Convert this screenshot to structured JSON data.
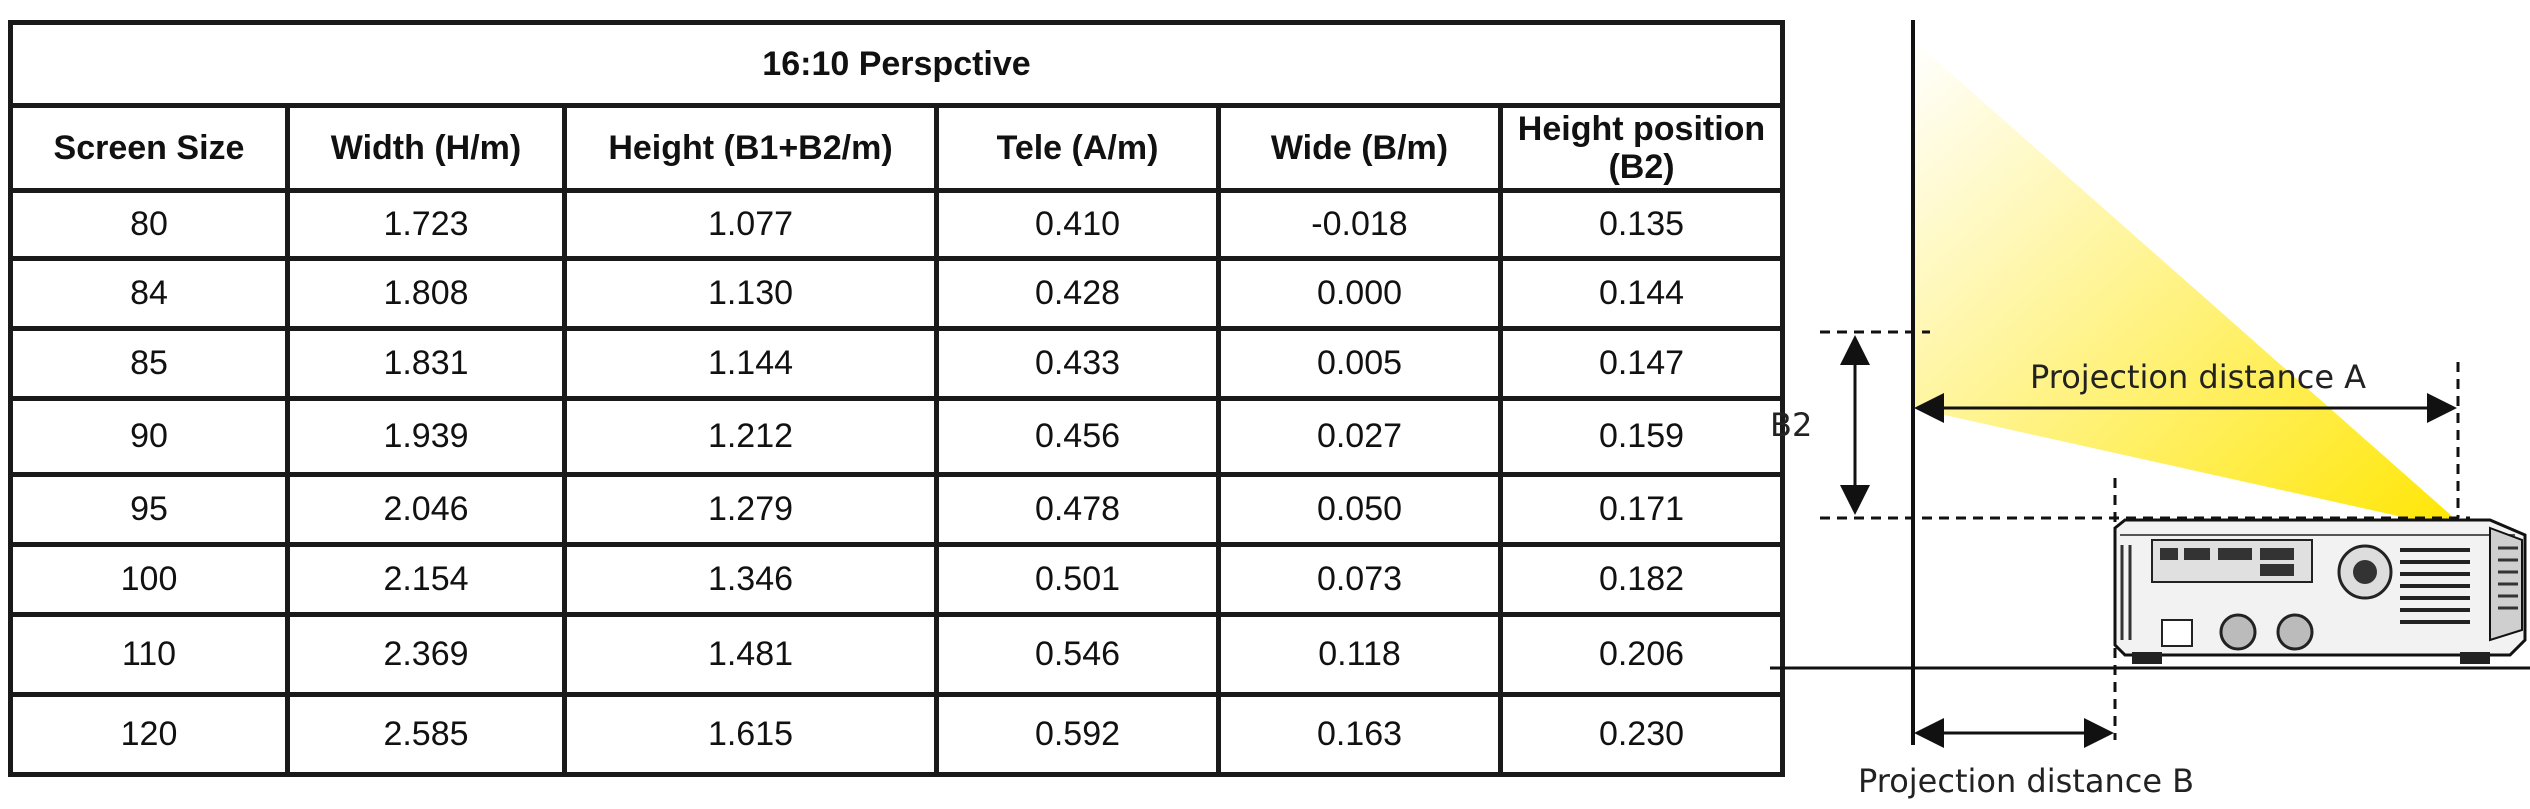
{
  "table": {
    "title": "16:10 Perspctive",
    "headers": [
      "Screen Size",
      "Width (H/m)",
      "Height (B1+B2/m)",
      "Tele (A/m)",
      "Wide (B/m)",
      "Height position (B2)"
    ],
    "rows": [
      [
        "80",
        "1.723",
        "1.077",
        "0.410",
        "-0.018",
        "0.135"
      ],
      [
        "84",
        "1.808",
        "1.130",
        "0.428",
        "0.000",
        "0.144"
      ],
      [
        "85",
        "1.831",
        "1.144",
        "0.433",
        "0.005",
        "0.147"
      ],
      [
        "90",
        "1.939",
        "1.212",
        "0.456",
        "0.027",
        "0.159"
      ],
      [
        "95",
        "2.046",
        "1.279",
        "0.478",
        "0.050",
        "0.171"
      ],
      [
        "100",
        "2.154",
        "1.346",
        "0.501",
        "0.073",
        "0.182"
      ],
      [
        "110",
        "2.369",
        "1.481",
        "0.546",
        "0.118",
        "0.206"
      ],
      [
        "120",
        "2.585",
        "1.615",
        "0.592",
        "0.163",
        "0.230"
      ]
    ]
  },
  "diagram": {
    "label_b2": "B2",
    "label_distance_a": "Projection distance A",
    "label_distance_b": "Projection distance B",
    "beam_color": "#ffe600"
  }
}
